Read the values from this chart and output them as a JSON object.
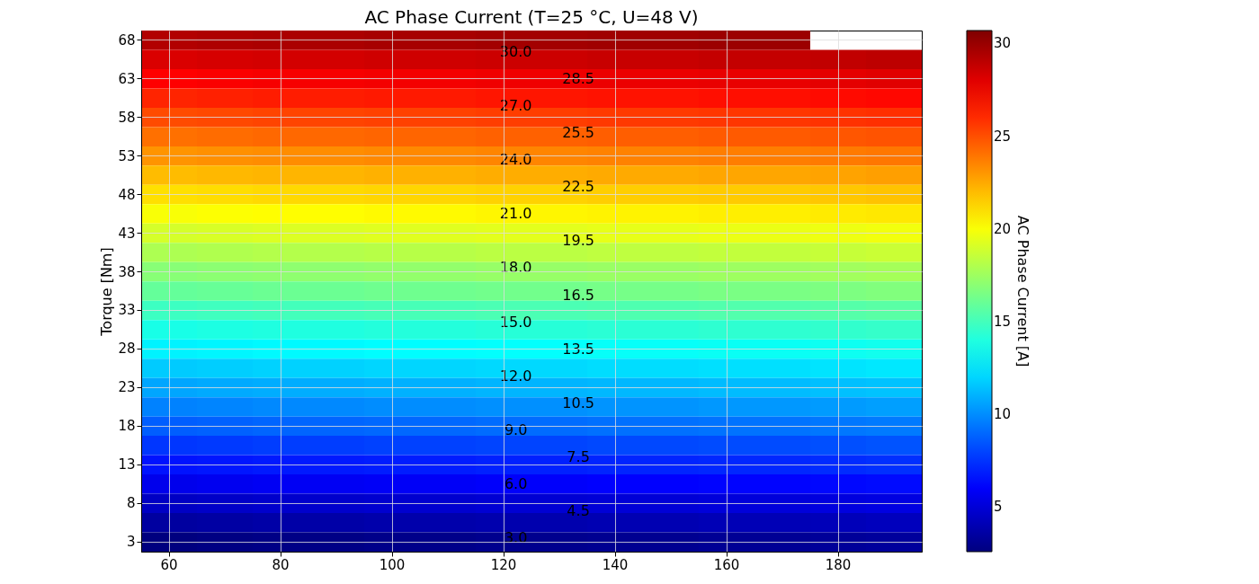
{
  "chart_data": {
    "type": "heatmap",
    "title": "AC Phase Current (T=25 °C, U=48 V)",
    "ylabel": "Torque [Nm]",
    "clabel": "AC Phase Current [A]",
    "categories": [
      "60",
      null,
      "80",
      null,
      "100",
      null,
      "120",
      null,
      "140",
      null,
      "160",
      null,
      "180",
      null
    ],
    "y_categories": [
      "68",
      null,
      "63",
      null,
      "58",
      null,
      "53",
      null,
      "48",
      null,
      "43",
      null,
      "38",
      null,
      "33",
      null,
      "28",
      null,
      "23",
      null,
      "18",
      null,
      "13",
      null,
      "8",
      null,
      "3"
    ],
    "cells": [
      [
        29.3,
        29.4,
        29.5,
        29.5,
        29.6,
        29.6,
        29.7,
        29.7,
        29.8,
        29.8,
        29.9,
        29.9,
        null,
        null
      ],
      [
        28.2,
        28.3,
        28.4,
        28.4,
        28.5,
        28.5,
        28.6,
        28.6,
        28.7,
        28.7,
        28.8,
        28.8,
        28.9,
        29.0
      ],
      [
        27.2,
        27.3,
        27.4,
        27.4,
        27.5,
        27.5,
        27.6,
        27.6,
        27.7,
        27.7,
        27.8,
        27.8,
        27.9,
        28.0
      ],
      [
        26.2,
        26.3,
        26.4,
        26.4,
        26.5,
        26.5,
        26.6,
        26.6,
        26.7,
        26.7,
        26.8,
        26.8,
        26.9,
        27.0
      ],
      [
        25.1,
        25.2,
        25.3,
        25.3,
        25.4,
        25.4,
        25.5,
        25.5,
        25.6,
        25.6,
        25.7,
        25.7,
        25.8,
        25.9
      ],
      [
        24.1,
        24.2,
        24.3,
        24.3,
        24.4,
        24.4,
        24.5,
        24.5,
        24.6,
        24.6,
        24.7,
        24.7,
        24.8,
        24.9
      ],
      [
        23.1,
        23.2,
        23.3,
        23.3,
        23.4,
        23.4,
        23.5,
        23.5,
        23.6,
        23.6,
        23.7,
        23.7,
        23.8,
        23.9
      ],
      [
        22.0,
        22.1,
        22.2,
        22.2,
        22.3,
        22.3,
        22.4,
        22.4,
        22.5,
        22.5,
        22.6,
        22.6,
        22.7,
        22.8
      ],
      [
        21.0,
        21.1,
        21.2,
        21.2,
        21.3,
        21.3,
        21.4,
        21.4,
        21.5,
        21.5,
        21.6,
        21.6,
        21.7,
        21.8
      ],
      [
        20.0,
        20.1,
        20.2,
        20.2,
        20.3,
        20.3,
        20.4,
        20.4,
        20.5,
        20.5,
        20.6,
        20.6,
        20.7,
        20.8
      ],
      [
        19.0,
        19.1,
        19.2,
        19.2,
        19.3,
        19.3,
        19.4,
        19.4,
        19.5,
        19.5,
        19.6,
        19.6,
        19.7,
        19.8
      ],
      [
        17.9,
        18.0,
        18.1,
        18.1,
        18.2,
        18.2,
        18.3,
        18.3,
        18.4,
        18.4,
        18.5,
        18.5,
        18.6,
        18.7
      ],
      [
        16.9,
        17.0,
        17.1,
        17.1,
        17.2,
        17.2,
        17.3,
        17.3,
        17.4,
        17.4,
        17.5,
        17.5,
        17.6,
        17.7
      ],
      [
        15.9,
        16.0,
        16.1,
        16.1,
        16.2,
        16.2,
        16.3,
        16.3,
        16.4,
        16.4,
        16.5,
        16.5,
        16.6,
        16.7
      ],
      [
        14.8,
        14.9,
        15.0,
        15.0,
        15.1,
        15.1,
        15.2,
        15.2,
        15.3,
        15.3,
        15.4,
        15.4,
        15.5,
        15.6
      ],
      [
        13.8,
        13.9,
        14.0,
        14.0,
        14.1,
        14.1,
        14.2,
        14.2,
        14.3,
        14.3,
        14.4,
        14.4,
        14.5,
        14.6
      ],
      [
        12.8,
        12.9,
        13.0,
        13.0,
        13.1,
        13.1,
        13.2,
        13.2,
        13.3,
        13.3,
        13.4,
        13.4,
        13.5,
        13.6
      ],
      [
        11.7,
        11.8,
        11.9,
        11.9,
        12.0,
        12.0,
        12.1,
        12.1,
        12.2,
        12.2,
        12.3,
        12.3,
        12.4,
        12.5
      ],
      [
        10.7,
        10.8,
        10.9,
        10.9,
        11.0,
        11.0,
        11.1,
        11.1,
        11.2,
        11.2,
        11.3,
        11.3,
        11.4,
        11.5
      ],
      [
        9.7,
        9.8,
        9.9,
        9.9,
        10.0,
        10.0,
        10.1,
        10.1,
        10.2,
        10.2,
        10.3,
        10.3,
        10.4,
        10.5
      ],
      [
        8.7,
        8.8,
        8.9,
        8.9,
        9.0,
        9.0,
        9.1,
        9.1,
        9.2,
        9.2,
        9.3,
        9.3,
        9.4,
        9.5
      ],
      [
        7.6,
        7.7,
        7.8,
        7.8,
        7.9,
        7.9,
        8.0,
        8.0,
        8.1,
        8.1,
        8.2,
        8.2,
        8.3,
        8.4
      ],
      [
        6.6,
        6.7,
        6.8,
        6.8,
        6.9,
        6.9,
        7.0,
        7.0,
        7.1,
        7.1,
        7.2,
        7.2,
        7.3,
        7.4
      ],
      [
        5.6,
        5.7,
        5.8,
        5.8,
        5.9,
        5.9,
        6.0,
        6.0,
        6.1,
        6.1,
        6.2,
        6.2,
        6.3,
        6.4
      ],
      [
        4.5,
        4.6,
        4.7,
        4.7,
        4.8,
        4.8,
        4.9,
        4.9,
        5.0,
        5.0,
        5.1,
        5.1,
        5.2,
        5.3
      ],
      [
        3.5,
        3.6,
        3.7,
        3.7,
        3.8,
        3.8,
        3.9,
        3.9,
        4.0,
        4.0,
        4.1,
        4.1,
        4.2,
        4.3
      ],
      [
        2.6,
        2.7,
        2.8,
        2.8,
        2.9,
        2.9,
        3.0,
        3.0,
        3.1,
        3.1,
        3.2,
        3.2,
        3.3,
        3.4
      ]
    ],
    "clim": [
      2.6,
      30.7
    ],
    "cticks": [
      5,
      10,
      15,
      20,
      25,
      30
    ],
    "grid": true,
    "annotations": [
      "30.0",
      "28.5",
      "27.0",
      "25.5",
      "24.0",
      "22.5",
      "21.0",
      "19.5",
      "18.0",
      "16.5",
      "15.0",
      "13.5",
      "12.0",
      "10.5",
      "9.0",
      "7.5",
      "6.0",
      "4.5",
      "3.0"
    ]
  }
}
